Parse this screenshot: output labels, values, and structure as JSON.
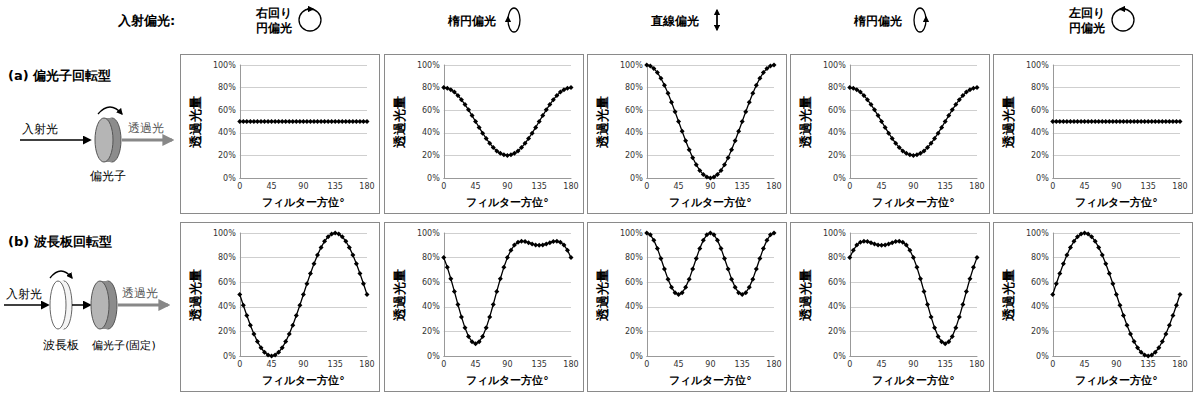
{
  "header": {
    "label": "入射偏光:",
    "columns": [
      "右回り\n円偏光",
      "楕円偏光",
      "直線偏光",
      "楕円偏光",
      "左回り\n円偏光"
    ]
  },
  "rows": [
    {
      "label": "(a) 偏光子回転型",
      "diagram": {
        "input": "入射光",
        "output": "透過光",
        "elements": [
          "偏光子"
        ]
      }
    },
    {
      "label": "(b) 波長板回転型",
      "diagram": {
        "input": "入射光",
        "output": "透過光",
        "elements": [
          "波長板",
          "偏光子(固定)"
        ]
      }
    }
  ],
  "chart_data": [
    {
      "type": "line",
      "x_label": "フィルター方位°",
      "y_label": "透過光量",
      "color": "#000000",
      "marker": "diamond",
      "grid": true,
      "xlim": [
        0,
        180
      ],
      "xticks": [
        0,
        45,
        90,
        135,
        180
      ],
      "ylim": [
        0,
        100
      ],
      "yticks": [
        {
          "value": 0,
          "label": "0%"
        },
        {
          "value": 20,
          "label": "20%"
        },
        {
          "value": 40,
          "label": "40%"
        },
        {
          "value": 60,
          "label": "60%"
        },
        {
          "value": 80,
          "label": "80%"
        },
        {
          "value": 100,
          "label": "100%"
        }
      ],
      "x": [
        0,
        5,
        10,
        15,
        20,
        25,
        30,
        35,
        40,
        45,
        50,
        55,
        60,
        65,
        70,
        75,
        80,
        85,
        90,
        95,
        100,
        105,
        110,
        115,
        120,
        125,
        130,
        135,
        140,
        145,
        150,
        155,
        160,
        165,
        170,
        175,
        180
      ],
      "values": [
        50,
        50,
        50,
        50,
        50,
        50,
        50,
        50,
        50,
        50,
        50,
        50,
        50,
        50,
        50,
        50,
        50,
        50,
        50,
        50,
        50,
        50,
        50,
        50,
        50,
        50,
        50,
        50,
        50,
        50,
        50,
        50,
        50,
        50,
        50,
        50,
        50
      ]
    },
    {
      "type": "line",
      "x_label": "フィルター方位°",
      "y_label": "透過光量",
      "color": "#000000",
      "marker": "diamond",
      "grid": true,
      "xlim": [
        0,
        180
      ],
      "xticks": [
        0,
        45,
        90,
        135,
        180
      ],
      "ylim": [
        0,
        100
      ],
      "yticks": [
        {
          "value": 0,
          "label": "0%"
        },
        {
          "value": 20,
          "label": "20%"
        },
        {
          "value": 40,
          "label": "40%"
        },
        {
          "value": 60,
          "label": "60%"
        },
        {
          "value": 80,
          "label": "80%"
        },
        {
          "value": 100,
          "label": "100%"
        }
      ],
      "x": [
        0,
        5,
        10,
        15,
        20,
        25,
        30,
        35,
        40,
        45,
        50,
        55,
        60,
        65,
        70,
        75,
        80,
        85,
        90,
        95,
        100,
        105,
        110,
        115,
        120,
        125,
        130,
        135,
        140,
        145,
        150,
        155,
        160,
        165,
        170,
        175,
        180
      ],
      "values": [
        80,
        79.5,
        78.2,
        76.0,
        73.0,
        69.3,
        65,
        60.3,
        55.2,
        50,
        44.8,
        39.7,
        35,
        30.7,
        27.0,
        24.0,
        21.8,
        20.5,
        20,
        20.5,
        21.8,
        24.0,
        27.0,
        30.7,
        35,
        39.7,
        44.8,
        50,
        55.2,
        60.3,
        65,
        69.3,
        73.0,
        76.0,
        78.2,
        79.5,
        80
      ]
    },
    {
      "type": "line",
      "x_label": "フィルター方位°",
      "y_label": "透過光量",
      "color": "#000000",
      "marker": "diamond",
      "grid": true,
      "xlim": [
        0,
        180
      ],
      "xticks": [
        0,
        45,
        90,
        135,
        180
      ],
      "ylim": [
        0,
        100
      ],
      "yticks": [
        {
          "value": 0,
          "label": "0%"
        },
        {
          "value": 20,
          "label": "20%"
        },
        {
          "value": 40,
          "label": "40%"
        },
        {
          "value": 60,
          "label": "60%"
        },
        {
          "value": 80,
          "label": "80%"
        },
        {
          "value": 100,
          "label": "100%"
        }
      ],
      "x": [
        0,
        5,
        10,
        15,
        20,
        25,
        30,
        35,
        40,
        45,
        50,
        55,
        60,
        65,
        70,
        75,
        80,
        85,
        90,
        95,
        100,
        105,
        110,
        115,
        120,
        125,
        130,
        135,
        140,
        145,
        150,
        155,
        160,
        165,
        170,
        175,
        180
      ],
      "values": [
        100,
        99.2,
        97.0,
        93.3,
        88.3,
        82.1,
        75,
        67.1,
        58.7,
        50,
        41.3,
        32.9,
        25,
        17.9,
        11.7,
        6.7,
        3.0,
        0.8,
        0,
        0.8,
        3.0,
        6.7,
        11.7,
        17.9,
        25,
        32.9,
        41.3,
        50,
        58.7,
        67.1,
        75,
        82.1,
        88.3,
        93.3,
        97.0,
        99.2,
        100
      ]
    },
    {
      "type": "line",
      "x_label": "フィルター方位°",
      "y_label": "透過光量",
      "color": "#000000",
      "marker": "diamond",
      "grid": true,
      "xlim": [
        0,
        180
      ],
      "xticks": [
        0,
        45,
        90,
        135,
        180
      ],
      "ylim": [
        0,
        100
      ],
      "yticks": [
        {
          "value": 0,
          "label": "0%"
        },
        {
          "value": 20,
          "label": "20%"
        },
        {
          "value": 40,
          "label": "40%"
        },
        {
          "value": 60,
          "label": "60%"
        },
        {
          "value": 80,
          "label": "80%"
        },
        {
          "value": 100,
          "label": "100%"
        }
      ],
      "x": [
        0,
        5,
        10,
        15,
        20,
        25,
        30,
        35,
        40,
        45,
        50,
        55,
        60,
        65,
        70,
        75,
        80,
        85,
        90,
        95,
        100,
        105,
        110,
        115,
        120,
        125,
        130,
        135,
        140,
        145,
        150,
        155,
        160,
        165,
        170,
        175,
        180
      ],
      "values": [
        80,
        79.5,
        78.2,
        76.0,
        73.0,
        69.3,
        65,
        60.3,
        55.2,
        50,
        44.8,
        39.7,
        35,
        30.7,
        27.0,
        24.0,
        21.8,
        20.5,
        20,
        20.5,
        21.8,
        24.0,
        27.0,
        30.7,
        35,
        39.7,
        44.8,
        50,
        55.2,
        60.3,
        65,
        69.3,
        73.0,
        76.0,
        78.2,
        79.5,
        80
      ]
    },
    {
      "type": "line",
      "x_label": "フィルター方位°",
      "y_label": "透過光量",
      "color": "#000000",
      "marker": "diamond",
      "grid": true,
      "xlim": [
        0,
        180
      ],
      "xticks": [
        0,
        45,
        90,
        135,
        180
      ],
      "ylim": [
        0,
        100
      ],
      "yticks": [
        {
          "value": 0,
          "label": "0%"
        },
        {
          "value": 20,
          "label": "20%"
        },
        {
          "value": 40,
          "label": "40%"
        },
        {
          "value": 60,
          "label": "60%"
        },
        {
          "value": 80,
          "label": "80%"
        },
        {
          "value": 100,
          "label": "100%"
        }
      ],
      "x": [
        0,
        5,
        10,
        15,
        20,
        25,
        30,
        35,
        40,
        45,
        50,
        55,
        60,
        65,
        70,
        75,
        80,
        85,
        90,
        95,
        100,
        105,
        110,
        115,
        120,
        125,
        130,
        135,
        140,
        145,
        150,
        155,
        160,
        165,
        170,
        175,
        180
      ],
      "values": [
        50,
        50,
        50,
        50,
        50,
        50,
        50,
        50,
        50,
        50,
        50,
        50,
        50,
        50,
        50,
        50,
        50,
        50,
        50,
        50,
        50,
        50,
        50,
        50,
        50,
        50,
        50,
        50,
        50,
        50,
        50,
        50,
        50,
        50,
        50,
        50,
        50
      ]
    },
    {
      "type": "line",
      "x_label": "フィルター方位°",
      "y_label": "透過光量",
      "color": "#000000",
      "marker": "diamond",
      "grid": true,
      "xlim": [
        0,
        180
      ],
      "xticks": [
        0,
        45,
        90,
        135,
        180
      ],
      "ylim": [
        0,
        100
      ],
      "yticks": [
        {
          "value": 0,
          "label": "0%"
        },
        {
          "value": 20,
          "label": "20%"
        },
        {
          "value": 40,
          "label": "40%"
        },
        {
          "value": 60,
          "label": "60%"
        },
        {
          "value": 80,
          "label": "80%"
        },
        {
          "value": 100,
          "label": "100%"
        }
      ],
      "x": [
        0,
        5,
        10,
        15,
        20,
        25,
        30,
        35,
        40,
        45,
        50,
        55,
        60,
        65,
        70,
        75,
        80,
        85,
        90,
        95,
        100,
        105,
        110,
        115,
        120,
        125,
        130,
        135,
        140,
        145,
        150,
        155,
        160,
        165,
        170,
        175,
        180
      ],
      "values": [
        50,
        41.3,
        32.9,
        25,
        17.9,
        11.7,
        6.7,
        3.0,
        0.8,
        0,
        0.8,
        3.0,
        6.7,
        11.7,
        17.9,
        25,
        32.9,
        41.3,
        50,
        58.7,
        67.1,
        75,
        82.1,
        88.3,
        93.3,
        97.0,
        99.2,
        100,
        99.2,
        97.0,
        93.3,
        88.3,
        82.1,
        75,
        67.1,
        58.7,
        50
      ]
    },
    {
      "type": "line",
      "x_label": "フィルター方位°",
      "y_label": "透過光量",
      "color": "#000000",
      "marker": "diamond",
      "grid": true,
      "xlim": [
        0,
        180
      ],
      "xticks": [
        0,
        45,
        90,
        135,
        180
      ],
      "ylim": [
        0,
        100
      ],
      "yticks": [
        {
          "value": 0,
          "label": "0%"
        },
        {
          "value": 20,
          "label": "20%"
        },
        {
          "value": 40,
          "label": "40%"
        },
        {
          "value": 60,
          "label": "60%"
        },
        {
          "value": 80,
          "label": "80%"
        },
        {
          "value": 100,
          "label": "100%"
        }
      ],
      "x": [
        0,
        5,
        10,
        15,
        20,
        25,
        30,
        35,
        40,
        45,
        50,
        55,
        60,
        65,
        70,
        75,
        80,
        85,
        90,
        95,
        100,
        105,
        110,
        115,
        120,
        125,
        130,
        135,
        140,
        145,
        150,
        155,
        160,
        165,
        170,
        175,
        180
      ],
      "values": [
        80,
        72.1,
        62.8,
        52.5,
        41.9,
        31.8,
        22.9,
        15.9,
        11.5,
        10,
        11.5,
        15.9,
        22.9,
        31.8,
        41.9,
        52.5,
        62.8,
        72.1,
        80,
        86.0,
        90.2,
        92.5,
        93.3,
        93.0,
        92.1,
        91.1,
        90.3,
        90,
        90.3,
        91.1,
        92.1,
        93.0,
        93.3,
        92.5,
        90.2,
        86.0,
        80
      ]
    },
    {
      "type": "line",
      "x_label": "フィルター方位°",
      "y_label": "透過光量",
      "color": "#000000",
      "marker": "diamond",
      "grid": true,
      "xlim": [
        0,
        180
      ],
      "xticks": [
        0,
        45,
        90,
        135,
        180
      ],
      "ylim": [
        0,
        100
      ],
      "yticks": [
        {
          "value": 0,
          "label": "0%"
        },
        {
          "value": 20,
          "label": "20%"
        },
        {
          "value": 40,
          "label": "40%"
        },
        {
          "value": 60,
          "label": "60%"
        },
        {
          "value": 80,
          "label": "80%"
        },
        {
          "value": 100,
          "label": "100%"
        }
      ],
      "x": [
        0,
        5,
        10,
        15,
        20,
        25,
        30,
        35,
        40,
        45,
        50,
        55,
        60,
        65,
        70,
        75,
        80,
        85,
        90,
        95,
        100,
        105,
        110,
        115,
        120,
        125,
        130,
        135,
        140,
        145,
        150,
        155,
        160,
        165,
        170,
        175,
        180
      ],
      "values": [
        100,
        98.5,
        94.2,
        87.5,
        79.3,
        70.7,
        62.5,
        55.8,
        51.5,
        50,
        51.5,
        55.8,
        62.5,
        70.7,
        79.3,
        87.5,
        94.2,
        98.5,
        100,
        98.5,
        94.2,
        87.5,
        79.3,
        70.7,
        62.5,
        55.8,
        51.5,
        50,
        51.5,
        55.8,
        62.5,
        70.7,
        79.3,
        87.5,
        94.2,
        98.5,
        100
      ]
    },
    {
      "type": "line",
      "x_label": "フィルター方位°",
      "y_label": "透過光量",
      "color": "#000000",
      "marker": "diamond",
      "grid": true,
      "xlim": [
        0,
        180
      ],
      "xticks": [
        0,
        45,
        90,
        135,
        180
      ],
      "ylim": [
        0,
        100
      ],
      "yticks": [
        {
          "value": 0,
          "label": "0%"
        },
        {
          "value": 20,
          "label": "20%"
        },
        {
          "value": 40,
          "label": "40%"
        },
        {
          "value": 60,
          "label": "60%"
        },
        {
          "value": 80,
          "label": "80%"
        },
        {
          "value": 100,
          "label": "100%"
        }
      ],
      "x": [
        0,
        5,
        10,
        15,
        20,
        25,
        30,
        35,
        40,
        45,
        50,
        55,
        60,
        65,
        70,
        75,
        80,
        85,
        90,
        95,
        100,
        105,
        110,
        115,
        120,
        125,
        130,
        135,
        140,
        145,
        150,
        155,
        160,
        165,
        170,
        175,
        180
      ],
      "values": [
        80,
        86.0,
        90.2,
        92.5,
        93.3,
        93.0,
        92.1,
        91.1,
        90.3,
        90,
        90.3,
        91.1,
        92.1,
        93.0,
        93.3,
        92.5,
        90.2,
        86.0,
        80,
        72.1,
        62.8,
        52.5,
        41.9,
        31.8,
        22.9,
        15.9,
        11.5,
        10,
        11.5,
        15.9,
        22.9,
        31.8,
        41.9,
        52.5,
        62.8,
        72.1,
        80
      ]
    },
    {
      "type": "line",
      "x_label": "フィルター方位°",
      "y_label": "透過光量",
      "color": "#000000",
      "marker": "diamond",
      "grid": true,
      "xlim": [
        0,
        180
      ],
      "xticks": [
        0,
        45,
        90,
        135,
        180
      ],
      "ylim": [
        0,
        100
      ],
      "yticks": [
        {
          "value": 0,
          "label": "0%"
        },
        {
          "value": 20,
          "label": "20%"
        },
        {
          "value": 40,
          "label": "40%"
        },
        {
          "value": 60,
          "label": "60%"
        },
        {
          "value": 80,
          "label": "80%"
        },
        {
          "value": 100,
          "label": "100%"
        }
      ],
      "x": [
        0,
        5,
        10,
        15,
        20,
        25,
        30,
        35,
        40,
        45,
        50,
        55,
        60,
        65,
        70,
        75,
        80,
        85,
        90,
        95,
        100,
        105,
        110,
        115,
        120,
        125,
        130,
        135,
        140,
        145,
        150,
        155,
        160,
        165,
        170,
        175,
        180
      ],
      "values": [
        50,
        58.7,
        67.1,
        75,
        82.1,
        88.3,
        93.3,
        97.0,
        99.2,
        100,
        99.2,
        97.0,
        93.3,
        88.3,
        82.1,
        75,
        67.1,
        58.7,
        50,
        41.3,
        32.9,
        25,
        17.9,
        11.7,
        6.7,
        3.0,
        0.8,
        0,
        0.8,
        3.0,
        6.7,
        11.7,
        17.9,
        25,
        32.9,
        41.3,
        50
      ]
    }
  ]
}
